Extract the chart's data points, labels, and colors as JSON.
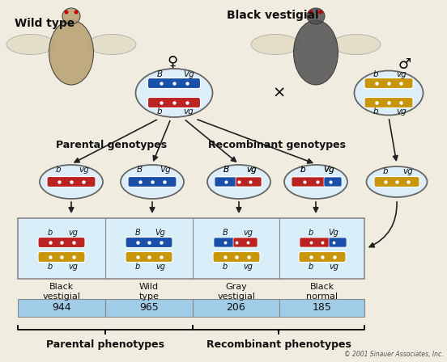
{
  "background_color": "#f0ede0",
  "female_symbol": "♀",
  "male_symbol": "♂",
  "cross_symbol": "×",
  "copyright": "© 2001 Sinauer Associates, Inc.",
  "wild_type_label": "Wild type",
  "black_vestigial_label": "Black vestigial",
  "parental_genotypes_label": "Parental genotypes",
  "recombinant_genotypes_label": "Recombinant genotypes",
  "parental_phenotypes_label": "Parental phenotypes",
  "recombinant_phenotypes_label": "Recombinant phenotypes",
  "counts": [
    "944",
    "965",
    "206",
    "185"
  ],
  "phenotype_labels": [
    "Black\nvestigial",
    "Wild\ntype",
    "Gray\nvestigial",
    "Black\nnormal"
  ],
  "blue_color": "#1a4faa",
  "red_color": "#bb2222",
  "gold_color": "#c8960a",
  "ellipse_fill": "#ddeef8",
  "ellipse_edge": "#666666",
  "box_fill": "#d8eef8",
  "box_edge": "#888888",
  "count_box_fill": "#a0cce8",
  "arrow_color": "#222222",
  "text_color": "#111111",
  "italic_color": "#111111",
  "mid_chr_colors": [
    "red",
    "blue",
    "blue_red",
    "red_blue"
  ],
  "mid_label_L": [
    "b",
    "B",
    "B",
    "b"
  ],
  "mid_label_R": [
    "vg",
    "Vg",
    "vg",
    "Vg"
  ],
  "box_top_colors": [
    "red",
    "blue",
    "blue",
    "red"
  ],
  "box_top_label_L": [
    "b",
    "B",
    "B",
    "b"
  ],
  "box_top_label_R": [
    "vg",
    "Vg",
    "vg",
    "Vg"
  ]
}
